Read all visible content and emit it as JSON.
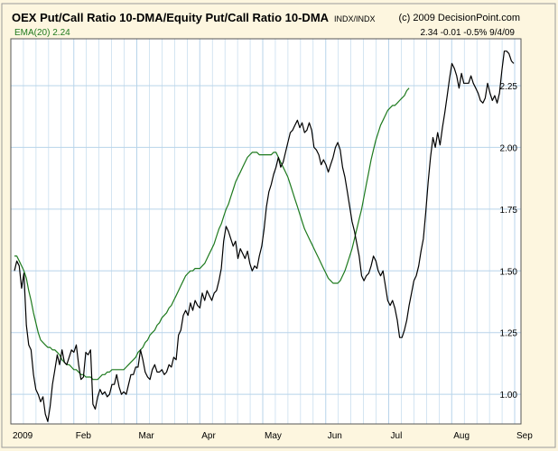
{
  "header": {
    "title": "OEX Put/Call Ratio 10-DMA/Equity Put/Call Ratio 10-DMA",
    "symbol": "INDX/INDX",
    "credit": "(c) 2009 DecisionPoint.com",
    "ema_legend": "EMA(20) 2.24",
    "readout": "2.34  -0.01  -0.5%  9/4/09"
  },
  "colors": {
    "background": "#fdf6df",
    "plot_bg": "#ffffff",
    "grid": "#b8d4ea",
    "price": "#000000",
    "ema": "#1e7a1e"
  },
  "chart_data": {
    "type": "line",
    "title": "OEX Put/Call Ratio 10-DMA/Equity Put/Call Ratio 10-DMA",
    "x_labels": [
      "2009",
      "Feb",
      "Mar",
      "Apr",
      "May",
      "Jun",
      "Jul",
      "Aug",
      "Sep"
    ],
    "y_ticks": [
      "1.00",
      "1.25",
      "1.50",
      "1.75",
      "2.00",
      "2.25"
    ],
    "ylim": [
      0.88,
      2.44
    ],
    "grid": true,
    "series": [
      {
        "name": "",
        "values": [
          1.5,
          1.54,
          1.52,
          1.43,
          1.49,
          1.28,
          1.2,
          1.18,
          1.08,
          1.02,
          1.0,
          0.97,
          0.99,
          0.92,
          0.89,
          0.95,
          1.04,
          1.1,
          1.16,
          1.12,
          1.18,
          1.13,
          1.12,
          1.15,
          1.18,
          1.17,
          1.2,
          1.12,
          1.06,
          1.07,
          1.17,
          1.16,
          1.18,
          0.96,
          0.94,
          0.99,
          1.02,
          1.0,
          1.01,
          0.99,
          1.0,
          1.04,
          1.04,
          1.08,
          1.03,
          1.0,
          1.01,
          1.0,
          1.04,
          1.08,
          1.08,
          1.11,
          1.11,
          1.18,
          1.14,
          1.09,
          1.07,
          1.06,
          1.1,
          1.12,
          1.09,
          1.09,
          1.1,
          1.08,
          1.09,
          1.12,
          1.11,
          1.15,
          1.14,
          1.24,
          1.26,
          1.32,
          1.34,
          1.32,
          1.37,
          1.34,
          1.38,
          1.36,
          1.35,
          1.41,
          1.38,
          1.42,
          1.4,
          1.38,
          1.41,
          1.42,
          1.46,
          1.51,
          1.62,
          1.68,
          1.66,
          1.63,
          1.6,
          1.62,
          1.55,
          1.59,
          1.57,
          1.55,
          1.58,
          1.53,
          1.5,
          1.52,
          1.51,
          1.56,
          1.6,
          1.67,
          1.76,
          1.82,
          1.85,
          1.89,
          1.92,
          1.96,
          1.92,
          1.94,
          1.98,
          2.02,
          2.06,
          2.07,
          2.09,
          2.11,
          2.08,
          2.1,
          2.06,
          2.07,
          2.1,
          2.07,
          2.0,
          1.99,
          1.97,
          1.93,
          1.95,
          1.93,
          1.9,
          1.93,
          1.96,
          2.0,
          2.02,
          1.99,
          1.92,
          1.88,
          1.82,
          1.76,
          1.7,
          1.66,
          1.61,
          1.56,
          1.48,
          1.46,
          1.48,
          1.49,
          1.52,
          1.56,
          1.54,
          1.5,
          1.48,
          1.5,
          1.44,
          1.38,
          1.36,
          1.38,
          1.35,
          1.3,
          1.23,
          1.23,
          1.26,
          1.3,
          1.36,
          1.41,
          1.46,
          1.48,
          1.52,
          1.58,
          1.63,
          1.74,
          1.86,
          1.96,
          2.04,
          2.0,
          2.06,
          2.01,
          2.08,
          2.14,
          2.21,
          2.28,
          2.34,
          2.32,
          2.29,
          2.24,
          2.3,
          2.26,
          2.26,
          2.26,
          2.29,
          2.26,
          2.24,
          2.22,
          2.19,
          2.18,
          2.2,
          2.26,
          2.22,
          2.19,
          2.21,
          2.18,
          2.22,
          2.31,
          2.39,
          2.39,
          2.38,
          2.35,
          2.34
        ]
      },
      {
        "name": "EMA(20)",
        "values": [
          1.56,
          1.56,
          1.54,
          1.52,
          1.5,
          1.47,
          1.42,
          1.38,
          1.33,
          1.29,
          1.25,
          1.22,
          1.21,
          1.2,
          1.19,
          1.19,
          1.18,
          1.18,
          1.17,
          1.16,
          1.14,
          1.13,
          1.12,
          1.12,
          1.11,
          1.1,
          1.1,
          1.09,
          1.08,
          1.08,
          1.07,
          1.07,
          1.07,
          1.06,
          1.06,
          1.06,
          1.07,
          1.08,
          1.08,
          1.09,
          1.09,
          1.1,
          1.1,
          1.1,
          1.1,
          1.1,
          1.1,
          1.11,
          1.12,
          1.13,
          1.14,
          1.15,
          1.17,
          1.18,
          1.19,
          1.21,
          1.22,
          1.24,
          1.25,
          1.26,
          1.28,
          1.29,
          1.31,
          1.32,
          1.33,
          1.35,
          1.36,
          1.38,
          1.4,
          1.42,
          1.44,
          1.46,
          1.48,
          1.49,
          1.5,
          1.5,
          1.51,
          1.51,
          1.51,
          1.52,
          1.53,
          1.55,
          1.57,
          1.59,
          1.61,
          1.64,
          1.67,
          1.69,
          1.72,
          1.75,
          1.77,
          1.8,
          1.83,
          1.86,
          1.88,
          1.9,
          1.92,
          1.94,
          1.96,
          1.97,
          1.98,
          1.98,
          1.98,
          1.97,
          1.97,
          1.97,
          1.97,
          1.97,
          1.97,
          1.98,
          1.98,
          1.96,
          1.94,
          1.92,
          1.9,
          1.88,
          1.85,
          1.82,
          1.79,
          1.76,
          1.73,
          1.7,
          1.67,
          1.65,
          1.63,
          1.61,
          1.59,
          1.57,
          1.55,
          1.53,
          1.51,
          1.49,
          1.47,
          1.46,
          1.45,
          1.45,
          1.45,
          1.46,
          1.48,
          1.5,
          1.53,
          1.56,
          1.59,
          1.63,
          1.67,
          1.71,
          1.75,
          1.8,
          1.85,
          1.9,
          1.95,
          1.99,
          2.03,
          2.06,
          2.09,
          2.11,
          2.13,
          2.15,
          2.16,
          2.17,
          2.17,
          2.18,
          2.19,
          2.2,
          2.21,
          2.23,
          2.24
        ]
      }
    ]
  }
}
